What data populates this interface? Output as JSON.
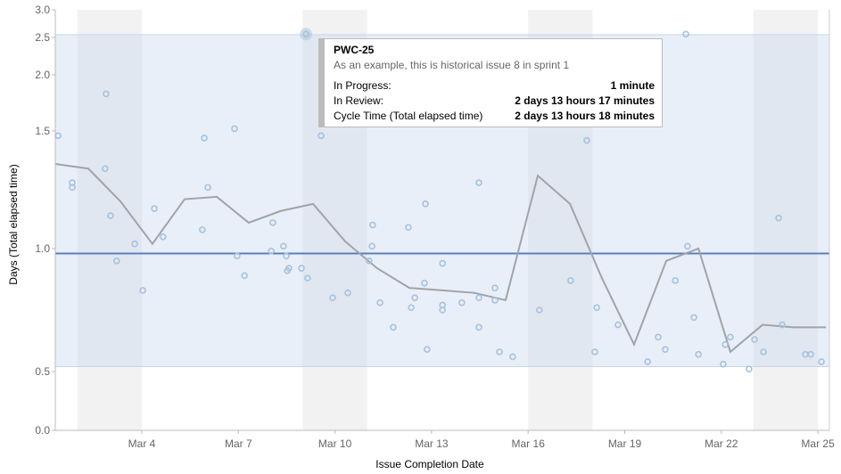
{
  "chart_data": {
    "type": "scatter",
    "xlabel": "Issue Completion Date",
    "ylabel": "Days (Total elapsed time)",
    "y_ticks": [
      "0.0",
      "0.5",
      "1.0",
      "1.5",
      "2.0",
      "2.5",
      "3.0"
    ],
    "y_tick_values": [
      0,
      0.5,
      1.0,
      1.5,
      2.0,
      2.5,
      3.0
    ],
    "x_ticks": [
      "Mar 4",
      "Mar 7",
      "Mar 10",
      "Mar 13",
      "Mar 16",
      "Mar 19",
      "Mar 22",
      "Mar 25"
    ],
    "x_tick_values": [
      4,
      7,
      10,
      13,
      16,
      19,
      22,
      25
    ],
    "x_unit": "day of March",
    "xlim": [
      1.3,
      25.35
    ],
    "ylim": [
      0,
      3.0
    ],
    "y_scale": "non-linear (compressed above 1.0)",
    "weekend_bands": [
      [
        2,
        4
      ],
      [
        9,
        11
      ],
      [
        16,
        18
      ],
      [
        23,
        25
      ]
    ],
    "control_band": [
      0.52,
      2.55
    ],
    "mean": 0.98,
    "colors": {
      "points": "#a7c1de",
      "rolling_average": "#a0a4a8",
      "mean": "#5b7fbf",
      "band": "#dfe8f5",
      "weekend": "#f2f2f2"
    },
    "points": [
      [
        1.4,
        1.48
      ],
      [
        1.84,
        1.28
      ],
      [
        1.84,
        1.26
      ],
      [
        2.89,
        1.83
      ],
      [
        2.86,
        1.34
      ],
      [
        3.03,
        1.14
      ],
      [
        3.22,
        0.95
      ],
      [
        3.78,
        1.02
      ],
      [
        4.03,
        0.83
      ],
      [
        4.39,
        1.17
      ],
      [
        4.66,
        1.05
      ],
      [
        5.94,
        1.47
      ],
      [
        5.88,
        1.08
      ],
      [
        6.05,
        1.26
      ],
      [
        6.88,
        1.52
      ],
      [
        6.96,
        0.97
      ],
      [
        7.19,
        0.89
      ],
      [
        8.07,
        1.11
      ],
      [
        8.02,
        0.99
      ],
      [
        8.4,
        1.01
      ],
      [
        8.49,
        0.97
      ],
      [
        8.52,
        0.91
      ],
      [
        8.57,
        0.92
      ],
      [
        8.96,
        0.92
      ],
      [
        9.15,
        0.88
      ],
      [
        9.1,
        2.56
      ],
      [
        9.57,
        1.48
      ],
      [
        9.93,
        0.8
      ],
      [
        10.4,
        0.82
      ],
      [
        11.17,
        1.1
      ],
      [
        11.15,
        1.01
      ],
      [
        11.06,
        0.95
      ],
      [
        11.4,
        0.78
      ],
      [
        11.81,
        0.68
      ],
      [
        12.28,
        1.09
      ],
      [
        12.81,
        1.19
      ],
      [
        12.37,
        0.76
      ],
      [
        12.48,
        0.8
      ],
      [
        12.78,
        0.86
      ],
      [
        12.86,
        0.59
      ],
      [
        13.34,
        0.94
      ],
      [
        13.34,
        0.77
      ],
      [
        13.34,
        0.75
      ],
      [
        13.94,
        0.78
      ],
      [
        14.47,
        1.28
      ],
      [
        14.47,
        0.8
      ],
      [
        14.47,
        0.68
      ],
      [
        14.97,
        0.84
      ],
      [
        14.97,
        0.79
      ],
      [
        15.11,
        0.58
      ],
      [
        15.52,
        0.56
      ],
      [
        16.35,
        0.75
      ],
      [
        17.82,
        1.46
      ],
      [
        17.32,
        0.87
      ],
      [
        18.13,
        0.76
      ],
      [
        18.07,
        0.58
      ],
      [
        18.79,
        0.69
      ],
      [
        19.71,
        0.54
      ],
      [
        20.04,
        0.64
      ],
      [
        20.26,
        0.59
      ],
      [
        20.57,
        0.87
      ],
      [
        20.95,
        1.01
      ],
      [
        20.9,
        2.56
      ],
      [
        21.15,
        0.72
      ],
      [
        21.29,
        0.57
      ],
      [
        22.06,
        0.53
      ],
      [
        22.12,
        0.61
      ],
      [
        22.28,
        0.64
      ],
      [
        22.86,
        0.51
      ],
      [
        23.03,
        0.63
      ],
      [
        23.31,
        0.58
      ],
      [
        23.78,
        1.13
      ],
      [
        23.89,
        0.69
      ],
      [
        24.61,
        0.57
      ],
      [
        24.78,
        0.57
      ],
      [
        25.11,
        0.54
      ]
    ],
    "highlighted_point": [
      9.1,
      2.56
    ],
    "rolling_average": [
      [
        1.31,
        1.36
      ],
      [
        2.34,
        1.34
      ],
      [
        3.34,
        1.2
      ],
      [
        4.33,
        1.02
      ],
      [
        5.33,
        1.21
      ],
      [
        6.33,
        1.22
      ],
      [
        7.32,
        1.11
      ],
      [
        8.32,
        1.16
      ],
      [
        9.32,
        1.19
      ],
      [
        10.32,
        1.03
      ],
      [
        11.31,
        0.92
      ],
      [
        12.31,
        0.84
      ],
      [
        13.34,
        0.83
      ],
      [
        14.33,
        0.82
      ],
      [
        15.3,
        0.79
      ],
      [
        16.3,
        1.31
      ],
      [
        17.3,
        1.19
      ],
      [
        18.29,
        0.88
      ],
      [
        19.29,
        0.61
      ],
      [
        20.29,
        0.95
      ],
      [
        21.29,
        1.0
      ],
      [
        22.28,
        0.58
      ],
      [
        23.28,
        0.69
      ],
      [
        24.25,
        0.68
      ],
      [
        25.25,
        0.68
      ]
    ]
  },
  "tooltip": {
    "key": "PWC-25",
    "summary": "As an example, this is historical issue 8 in sprint 1",
    "rows": [
      {
        "label": "In Progress:",
        "value": "1 minute"
      },
      {
        "label": "In Review:",
        "value": "2 days 13 hours 17 minutes"
      },
      {
        "label": "Cycle Time (Total elapsed time)",
        "value": "2 days 13 hours 18 minutes"
      }
    ]
  }
}
